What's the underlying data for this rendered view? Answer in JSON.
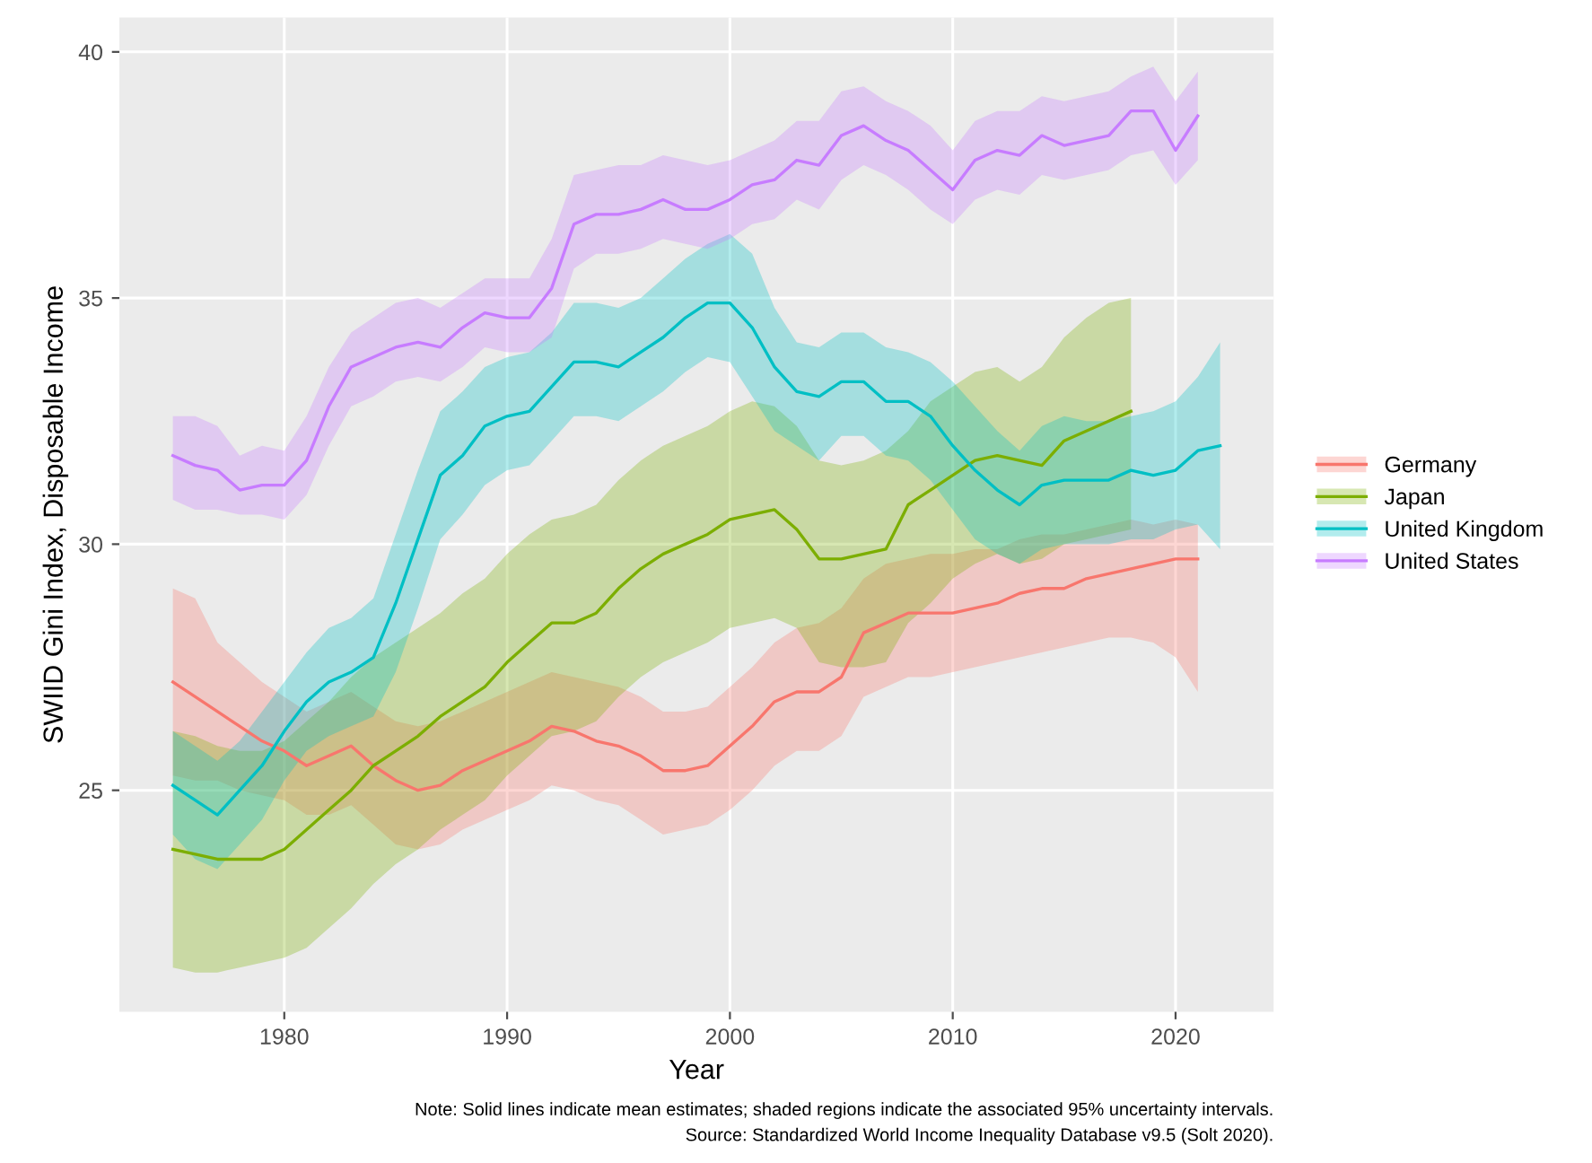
{
  "chart_data": {
    "type": "line",
    "xlabel": "Year",
    "ylabel": "SWIID Gini Index, Disposable Income",
    "xlim": [
      1972.6,
      2024.4
    ],
    "ylim": [
      20.5,
      40.7
    ],
    "xticks": [
      1980,
      1990,
      2000,
      2010,
      2020
    ],
    "yticks": [
      25,
      30,
      35,
      40
    ],
    "grid": true,
    "legend": "right",
    "marker": "none",
    "line_style": "solid",
    "annotations": [
      "Note: Solid lines indicate mean estimates; shaded regions indicate the associated 95% uncertainty intervals.",
      "Source: Standardized World Income Inequality Database v9.5 (Solt 2020)."
    ],
    "series": [
      {
        "name": "Germany",
        "color": "#f8766d",
        "x": [
          1975,
          1976,
          1977,
          1978,
          1979,
          1980,
          1981,
          1982,
          1983,
          1984,
          1985,
          1986,
          1987,
          1988,
          1989,
          1990,
          1991,
          1992,
          1993,
          1994,
          1995,
          1996,
          1997,
          1998,
          1999,
          2000,
          2001,
          2002,
          2003,
          2004,
          2005,
          2006,
          2007,
          2008,
          2009,
          2010,
          2011,
          2012,
          2013,
          2014,
          2015,
          2016,
          2017,
          2018,
          2019,
          2020,
          2021
        ],
        "values": [
          27.2,
          26.9,
          26.6,
          26.3,
          26.0,
          25.8,
          25.5,
          25.7,
          25.9,
          25.5,
          25.2,
          25.0,
          25.1,
          25.4,
          25.6,
          25.8,
          26.0,
          26.3,
          26.2,
          26.0,
          25.9,
          25.7,
          25.4,
          25.4,
          25.5,
          25.9,
          26.3,
          26.8,
          27.0,
          27.0,
          27.3,
          28.2,
          28.4,
          28.6,
          28.6,
          28.6,
          28.7,
          28.8,
          29.0,
          29.1,
          29.1,
          29.3,
          29.4,
          29.5,
          29.6,
          29.7,
          29.7
        ],
        "lower": [
          25.3,
          25.2,
          25.2,
          25.0,
          24.9,
          24.8,
          24.5,
          24.5,
          24.7,
          24.3,
          23.9,
          23.8,
          23.9,
          24.2,
          24.4,
          24.6,
          24.8,
          25.1,
          25.0,
          24.8,
          24.7,
          24.4,
          24.1,
          24.2,
          24.3,
          24.6,
          25.0,
          25.5,
          25.8,
          25.8,
          26.1,
          26.9,
          27.1,
          27.3,
          27.3,
          27.4,
          27.5,
          27.6,
          27.7,
          27.8,
          27.9,
          28.0,
          28.1,
          28.1,
          28.0,
          27.7,
          27.0
        ],
        "upper": [
          29.1,
          28.9,
          28.0,
          27.6,
          27.2,
          26.9,
          26.6,
          26.8,
          27.0,
          26.7,
          26.4,
          26.3,
          26.4,
          26.6,
          26.8,
          27.0,
          27.2,
          27.4,
          27.3,
          27.2,
          27.1,
          26.9,
          26.6,
          26.6,
          26.7,
          27.1,
          27.5,
          28.0,
          28.3,
          28.4,
          28.7,
          29.3,
          29.6,
          29.7,
          29.8,
          29.8,
          29.9,
          29.9,
          30.1,
          30.2,
          30.2,
          30.3,
          30.4,
          30.5,
          30.4,
          30.5,
          30.4
        ]
      },
      {
        "name": "Japan",
        "color": "#7cae00",
        "x": [
          1975,
          1976,
          1977,
          1978,
          1979,
          1980,
          1981,
          1982,
          1983,
          1984,
          1985,
          1986,
          1987,
          1988,
          1989,
          1990,
          1991,
          1992,
          1993,
          1994,
          1995,
          1996,
          1997,
          1998,
          1999,
          2000,
          2001,
          2002,
          2003,
          2004,
          2005,
          2006,
          2007,
          2008,
          2009,
          2010,
          2011,
          2012,
          2013,
          2014,
          2015,
          2016,
          2017,
          2018
        ],
        "values": [
          23.8,
          23.7,
          23.6,
          23.6,
          23.6,
          23.8,
          24.2,
          24.6,
          25.0,
          25.5,
          25.8,
          26.1,
          26.5,
          26.8,
          27.1,
          27.6,
          28.0,
          28.4,
          28.4,
          28.6,
          29.1,
          29.5,
          29.8,
          30.0,
          30.2,
          30.5,
          30.6,
          30.7,
          30.3,
          29.7,
          29.7,
          29.8,
          29.9,
          30.8,
          31.1,
          31.4,
          31.7,
          31.8,
          31.7,
          31.6,
          32.1,
          32.3,
          32.5,
          32.7
        ],
        "lower": [
          21.4,
          21.3,
          21.3,
          21.4,
          21.5,
          21.6,
          21.8,
          22.2,
          22.6,
          23.1,
          23.5,
          23.8,
          24.2,
          24.5,
          24.8,
          25.3,
          25.7,
          26.1,
          26.2,
          26.4,
          26.9,
          27.3,
          27.6,
          27.8,
          28.0,
          28.3,
          28.4,
          28.5,
          28.3,
          27.6,
          27.5,
          27.5,
          27.6,
          28.4,
          28.8,
          29.3,
          29.6,
          29.8,
          29.6,
          29.7,
          30.0,
          30.1,
          30.2,
          30.3
        ],
        "upper": [
          26.2,
          26.1,
          25.9,
          25.8,
          25.8,
          26.0,
          26.4,
          26.8,
          27.3,
          27.7,
          28.0,
          28.3,
          28.6,
          29.0,
          29.3,
          29.8,
          30.2,
          30.5,
          30.6,
          30.8,
          31.3,
          31.7,
          32.0,
          32.2,
          32.4,
          32.7,
          32.9,
          32.8,
          32.4,
          31.7,
          31.6,
          31.7,
          31.9,
          32.3,
          32.9,
          33.2,
          33.5,
          33.6,
          33.3,
          33.6,
          34.2,
          34.6,
          34.9,
          35.0
        ]
      },
      {
        "name": "United Kingdom",
        "color": "#00bfc4",
        "x": [
          1975,
          1976,
          1977,
          1978,
          1979,
          1980,
          1981,
          1982,
          1983,
          1984,
          1985,
          1986,
          1987,
          1988,
          1989,
          1990,
          1991,
          1992,
          1993,
          1994,
          1995,
          1996,
          1997,
          1998,
          1999,
          2000,
          2001,
          2002,
          2003,
          2004,
          2005,
          2006,
          2007,
          2008,
          2009,
          2010,
          2011,
          2012,
          2013,
          2014,
          2015,
          2016,
          2017,
          2018,
          2019,
          2020,
          2021,
          2022
        ],
        "values": [
          25.1,
          24.8,
          24.5,
          25.0,
          25.5,
          26.2,
          26.8,
          27.2,
          27.4,
          27.7,
          28.8,
          30.1,
          31.4,
          31.8,
          32.4,
          32.6,
          32.7,
          33.2,
          33.7,
          33.7,
          33.6,
          33.9,
          34.2,
          34.6,
          34.9,
          34.9,
          34.4,
          33.6,
          33.1,
          33.0,
          33.3,
          33.3,
          32.9,
          32.9,
          32.6,
          32.0,
          31.5,
          31.1,
          30.8,
          31.2,
          31.3,
          31.3,
          31.3,
          31.5,
          31.4,
          31.5,
          31.9,
          32.0
        ],
        "lower": [
          24.1,
          23.6,
          23.4,
          23.9,
          24.4,
          25.2,
          25.8,
          26.1,
          26.3,
          26.5,
          27.4,
          28.7,
          30.1,
          30.6,
          31.2,
          31.5,
          31.6,
          32.1,
          32.6,
          32.6,
          32.5,
          32.8,
          33.1,
          33.5,
          33.8,
          33.7,
          33.0,
          32.3,
          32.0,
          31.7,
          32.2,
          32.2,
          31.8,
          31.7,
          31.3,
          30.7,
          30.1,
          29.8,
          29.6,
          29.9,
          30.0,
          30.0,
          30.0,
          30.1,
          30.1,
          30.3,
          30.4,
          29.9
        ],
        "upper": [
          26.2,
          25.9,
          25.6,
          26.0,
          26.6,
          27.2,
          27.8,
          28.3,
          28.5,
          28.9,
          30.2,
          31.5,
          32.7,
          33.1,
          33.6,
          33.8,
          33.9,
          34.3,
          34.9,
          34.9,
          34.8,
          35.0,
          35.4,
          35.8,
          36.1,
          36.3,
          35.9,
          34.8,
          34.1,
          34.0,
          34.3,
          34.3,
          34.0,
          33.9,
          33.7,
          33.3,
          32.8,
          32.3,
          31.9,
          32.4,
          32.6,
          32.5,
          32.5,
          32.6,
          32.7,
          32.9,
          33.4,
          34.1
        ]
      },
      {
        "name": "United States",
        "color": "#c77cff",
        "x": [
          1975,
          1976,
          1977,
          1978,
          1979,
          1980,
          1981,
          1982,
          1983,
          1984,
          1985,
          1986,
          1987,
          1988,
          1989,
          1990,
          1991,
          1992,
          1993,
          1994,
          1995,
          1996,
          1997,
          1998,
          1999,
          2000,
          2001,
          2002,
          2003,
          2004,
          2005,
          2006,
          2007,
          2008,
          2009,
          2010,
          2011,
          2012,
          2013,
          2014,
          2015,
          2016,
          2017,
          2018,
          2019,
          2020,
          2021
        ],
        "values": [
          31.8,
          31.6,
          31.5,
          31.1,
          31.2,
          31.2,
          31.7,
          32.8,
          33.6,
          33.8,
          34.0,
          34.1,
          34.0,
          34.4,
          34.7,
          34.6,
          34.6,
          35.2,
          36.5,
          36.7,
          36.7,
          36.8,
          37.0,
          36.8,
          36.8,
          37.0,
          37.3,
          37.4,
          37.8,
          37.7,
          38.3,
          38.5,
          38.2,
          38.0,
          37.6,
          37.2,
          37.8,
          38.0,
          37.9,
          38.3,
          38.1,
          38.2,
          38.3,
          38.8,
          38.8,
          38.0,
          38.7
        ],
        "lower": [
          30.9,
          30.7,
          30.7,
          30.6,
          30.6,
          30.5,
          31.0,
          32.0,
          32.8,
          33.0,
          33.3,
          33.4,
          33.3,
          33.6,
          34.0,
          33.9,
          33.9,
          34.2,
          35.6,
          35.9,
          35.9,
          36.0,
          36.2,
          36.1,
          36.0,
          36.2,
          36.5,
          36.6,
          37.0,
          36.8,
          37.4,
          37.7,
          37.5,
          37.2,
          36.8,
          36.5,
          37.0,
          37.2,
          37.1,
          37.5,
          37.4,
          37.5,
          37.6,
          37.9,
          38.0,
          37.3,
          37.8
        ],
        "upper": [
          32.6,
          32.6,
          32.4,
          31.8,
          32.0,
          31.9,
          32.6,
          33.6,
          34.3,
          34.6,
          34.9,
          35.0,
          34.8,
          35.1,
          35.4,
          35.4,
          35.4,
          36.2,
          37.5,
          37.6,
          37.7,
          37.7,
          37.9,
          37.8,
          37.7,
          37.8,
          38.0,
          38.2,
          38.6,
          38.6,
          39.2,
          39.3,
          39.0,
          38.8,
          38.5,
          38.0,
          38.6,
          38.8,
          38.8,
          39.1,
          39.0,
          39.1,
          39.2,
          39.5,
          39.7,
          39.0,
          39.6
        ]
      }
    ]
  }
}
